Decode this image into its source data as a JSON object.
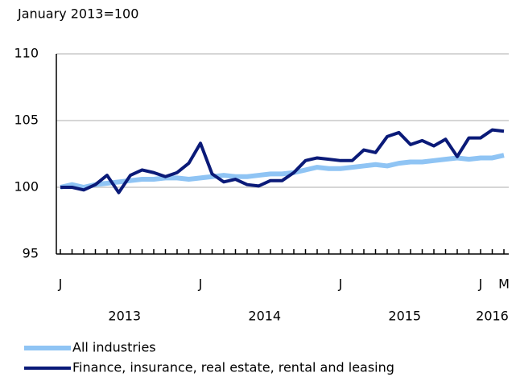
{
  "chart_data": {
    "type": "line",
    "subtitle": "January 2013=100",
    "categories": [
      "J",
      null,
      null,
      null,
      null,
      null,
      null,
      null,
      null,
      null,
      null,
      null,
      "J",
      null,
      null,
      null,
      null,
      null,
      null,
      null,
      null,
      null,
      null,
      null,
      "J",
      null,
      null,
      null,
      null,
      null,
      null,
      null,
      null,
      null,
      null,
      null,
      "J",
      null,
      "M"
    ],
    "years": [
      "2013",
      "2014",
      "2015",
      "2016"
    ],
    "ylim": [
      95,
      110
    ],
    "yticks": [
      95,
      100,
      105,
      110
    ],
    "grid": true,
    "series": [
      {
        "name": "All industries",
        "color": "#8fc4f4",
        "values": [
          100,
          100.2,
          100,
          100.2,
          100.3,
          100.4,
          100.5,
          100.6,
          100.6,
          100.7,
          100.7,
          100.6,
          100.7,
          100.8,
          100.9,
          100.8,
          100.8,
          100.9,
          101.0,
          101.0,
          101.1,
          101.3,
          101.5,
          101.4,
          101.4,
          101.5,
          101.6,
          101.7,
          101.6,
          101.8,
          101.9,
          101.9,
          102.0,
          102.1,
          102.2,
          102.1,
          102.2,
          102.2,
          102.4
        ]
      },
      {
        "name": "Finance, insurance, real estate, rental and leasing",
        "color": "#0a1a78",
        "values": [
          100,
          100,
          99.8,
          100.2,
          100.9,
          99.6,
          100.9,
          101.3,
          101.1,
          100.8,
          101.1,
          101.8,
          103.3,
          101.0,
          100.4,
          100.6,
          100.2,
          100.1,
          100.5,
          100.5,
          101.1,
          102.0,
          102.2,
          102.1,
          102.0,
          102.0,
          102.8,
          102.6,
          103.8,
          104.1,
          103.2,
          103.5,
          103.1,
          103.6,
          102.3,
          103.7,
          103.7,
          104.3,
          104.2
        ]
      }
    ]
  }
}
